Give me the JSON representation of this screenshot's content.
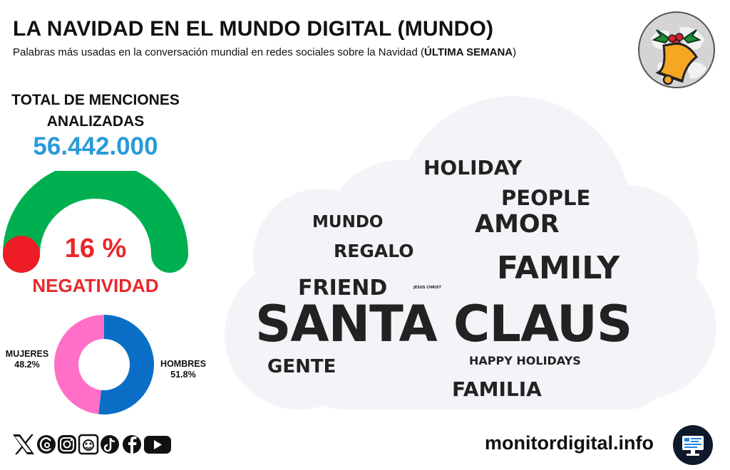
{
  "header": {
    "title": "LA NAVIDAD EN EL MUNDO DIGITAL (MUNDO)",
    "subtitle_prefix": "Palabras más usadas en la conversación mundial en redes sociales sobre la Navidad (",
    "subtitle_bold": "ÚLTIMA SEMANA",
    "subtitle_suffix": ")",
    "logo_icon": "christmas-bell-globe-icon"
  },
  "mentions": {
    "label": "TOTAL DE MENCIONES ANALIZADAS",
    "value": "56.442.000"
  },
  "negativity": {
    "percent_label": "16 %",
    "label": "NEGATIVIDAD",
    "value": 16,
    "colors": {
      "arc": "#00b050",
      "marker": "#ee1c25",
      "text": "#e8282b"
    }
  },
  "gender": {
    "women_label": "MUJERES",
    "women_pct": "48.2%",
    "men_label": "HOMBRES",
    "men_pct": "51.8%",
    "colors": {
      "women": "#ff6fc8",
      "men": "#0a6ec7"
    }
  },
  "chart_data": {
    "type": "donut",
    "categories": [
      "HOMBRES",
      "MUJERES"
    ],
    "values": [
      51.8,
      48.2
    ],
    "title": ""
  },
  "word_cloud": {
    "words": [
      {
        "text": "HOLIDAY"
      },
      {
        "text": "PEOPLE"
      },
      {
        "text": "MUNDO"
      },
      {
        "text": "AMOR"
      },
      {
        "text": "REGALO"
      },
      {
        "text": "FAMILY"
      },
      {
        "text": "FRIEND"
      },
      {
        "text": "JESUS CHRIST"
      },
      {
        "text": "SANTA CLAUS"
      },
      {
        "text": "GENTE"
      },
      {
        "text": "HAPPY HOLIDAYS"
      },
      {
        "text": "FAMILIA"
      }
    ]
  },
  "footer": {
    "site": "monitordigital.info",
    "social_icons": [
      "x-icon",
      "threads-icon",
      "instagram-icon",
      "meneame-icon",
      "tiktok-icon",
      "facebook-icon",
      "youtube-icon"
    ],
    "monitor_icon": "monitor-dashboard-icon"
  }
}
